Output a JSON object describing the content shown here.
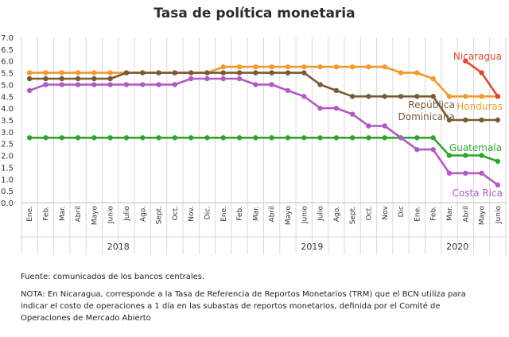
{
  "chart_data": {
    "type": "line",
    "title": "Tasa de política monetaria",
    "months": [
      "Ene.",
      "Feb.",
      "Mar.",
      "Abril",
      "Mayo",
      "Junio",
      "Julio",
      "Ago.",
      "Sept.",
      "Oct.",
      "Nov.",
      "Dic.",
      "Ene.",
      "Feb.",
      "Mar.",
      "Abril",
      "Mayo",
      "Junio",
      "Julio",
      "Ago.",
      "Sept.",
      "Oct.",
      "Nov",
      "Dic",
      "Ene.",
      "Feb.",
      "Mar.",
      "Abril",
      "Mayo",
      "Junio"
    ],
    "years": [
      {
        "label": "2018",
        "start": 0,
        "end": 11
      },
      {
        "label": "2019",
        "start": 12,
        "end": 23
      },
      {
        "label": "2020",
        "start": 24,
        "end": 29
      }
    ],
    "y_ticks": [
      "0.0",
      "0.5",
      "1.0",
      "1.5",
      "2.0",
      "2.5",
      "3.0",
      "3.5",
      "4.0",
      "4.5",
      "5.0",
      "5.5",
      "6.0",
      "6.5",
      "7.0"
    ],
    "ylim": [
      0,
      7
    ],
    "grid": "vertical",
    "series": [
      {
        "name": "Honduras",
        "label_lines": [
          "Honduras"
        ],
        "color": "#f39a2b",
        "x": [
          0,
          1,
          2,
          3,
          4,
          5,
          6,
          7,
          8,
          9,
          10,
          11,
          12,
          13,
          14,
          15,
          16,
          17,
          18,
          19,
          20,
          21,
          22,
          23,
          24,
          25,
          26,
          27,
          28,
          29
        ],
        "values": [
          5.5,
          5.5,
          5.5,
          5.5,
          5.5,
          5.5,
          5.5,
          5.5,
          5.5,
          5.5,
          5.5,
          5.5,
          5.75,
          5.75,
          5.75,
          5.75,
          5.75,
          5.75,
          5.75,
          5.75,
          5.75,
          5.75,
          5.75,
          5.5,
          5.5,
          5.25,
          4.5,
          4.5,
          4.5,
          4.5
        ]
      },
      {
        "name": "Nicaragua",
        "label_lines": [
          "Nicaragua"
        ],
        "color": "#e0492f",
        "x": [
          27,
          28,
          29
        ],
        "values": [
          6.0,
          5.5,
          4.5
        ]
      },
      {
        "name": "República Dominicana",
        "label_lines": [
          "República",
          "Dominicana"
        ],
        "color": "#7a5a36",
        "x": [
          0,
          1,
          2,
          3,
          4,
          5,
          6,
          7,
          8,
          9,
          10,
          11,
          12,
          13,
          14,
          15,
          16,
          17,
          18,
          19,
          20,
          21,
          22,
          23,
          24,
          25,
          26,
          27,
          28,
          29
        ],
        "values": [
          5.25,
          5.25,
          5.25,
          5.25,
          5.25,
          5.25,
          5.5,
          5.5,
          5.5,
          5.5,
          5.5,
          5.5,
          5.5,
          5.5,
          5.5,
          5.5,
          5.5,
          5.5,
          5.0,
          4.75,
          4.5,
          4.5,
          4.5,
          4.5,
          4.5,
          4.5,
          3.5,
          3.5,
          3.5,
          3.5
        ]
      },
      {
        "name": "Guatemala",
        "label_lines": [
          "Guatemala"
        ],
        "color": "#2ea62e",
        "x": [
          0,
          1,
          2,
          3,
          4,
          5,
          6,
          7,
          8,
          9,
          10,
          11,
          12,
          13,
          14,
          15,
          16,
          17,
          18,
          19,
          20,
          21,
          22,
          23,
          24,
          25,
          26,
          27,
          28,
          29
        ],
        "values": [
          2.75,
          2.75,
          2.75,
          2.75,
          2.75,
          2.75,
          2.75,
          2.75,
          2.75,
          2.75,
          2.75,
          2.75,
          2.75,
          2.75,
          2.75,
          2.75,
          2.75,
          2.75,
          2.75,
          2.75,
          2.75,
          2.75,
          2.75,
          2.75,
          2.75,
          2.75,
          2.0,
          2.0,
          2.0,
          1.75
        ]
      },
      {
        "name": "Costa Rica",
        "label_lines": [
          "Costa Rica"
        ],
        "color": "#b15bc4",
        "x": [
          0,
          1,
          2,
          3,
          4,
          5,
          6,
          7,
          8,
          9,
          10,
          11,
          12,
          13,
          14,
          15,
          16,
          17,
          18,
          19,
          20,
          21,
          22,
          23,
          24,
          25,
          26,
          27,
          28,
          29
        ],
        "values": [
          4.75,
          5.0,
          5.0,
          5.0,
          5.0,
          5.0,
          5.0,
          5.0,
          5.0,
          5.0,
          5.25,
          5.25,
          5.25,
          5.25,
          5.0,
          5.0,
          4.75,
          4.5,
          4.0,
          4.0,
          3.75,
          3.25,
          3.25,
          2.75,
          2.25,
          2.25,
          1.25,
          1.25,
          1.25,
          0.75
        ]
      }
    ]
  },
  "source_note": "Fuente: comunicados de los bancos centrales.",
  "footnote": "NOTA: En Nicaragua, corresponde a la Tasa de Referencia de Reportos Monetarios (TRM) que el BCN utiliza para indicar el costo de operaciones a 1 día en las subastas de reportos monetarios, definida por el Comité de Operaciones de Mercado Abierto"
}
